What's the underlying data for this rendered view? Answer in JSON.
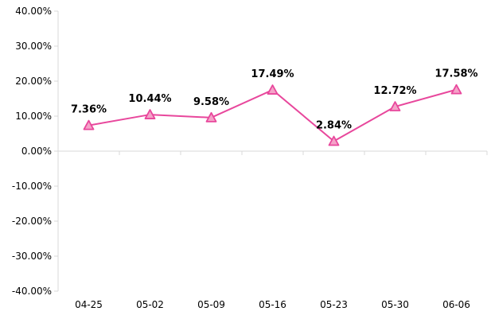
{
  "chart_data": {
    "type": "line",
    "title": "",
    "xlabel": "",
    "ylabel": "",
    "categories": [
      "04-25",
      "05-02",
      "05-09",
      "05-16",
      "05-23",
      "05-30",
      "06-06"
    ],
    "series": [
      {
        "values": [
          7.36,
          10.44,
          9.58,
          17.49,
          2.84,
          12.72,
          17.58
        ],
        "labels": [
          "7.36%",
          "10.44%",
          "9.58%",
          "17.49%",
          "2.84%",
          "12.72%",
          "17.58%"
        ],
        "color": "#e8479c",
        "marker": "triangle",
        "marker_fill": "#f4a3c8"
      }
    ],
    "ylim": [
      -40,
      40
    ],
    "yticks": [
      40,
      30,
      20,
      10,
      0,
      -10,
      -20,
      -30,
      -40
    ],
    "ytick_labels": [
      "40.00%",
      "30.00%",
      "20.00%",
      "10.00%",
      "0.00%",
      "-10.00%",
      "-20.00%",
      "-30.00%",
      "-40.00%"
    ],
    "grid": false,
    "legend": "none",
    "axis_color": "#d9d9d9"
  }
}
